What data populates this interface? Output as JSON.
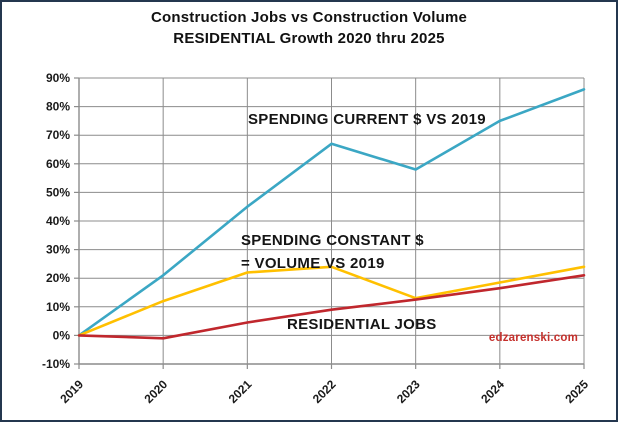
{
  "title": {
    "line1": "Construction Jobs vs Construction Volume",
    "line2": "RESIDENTIAL Growth 2020 thru 2025"
  },
  "chart_data": {
    "type": "line",
    "title": "Construction Jobs vs Construction Volume",
    "subtitle": "RESIDENTIAL Growth 2020 thru 2025",
    "categories": [
      "2019",
      "2020",
      "2021",
      "2022",
      "2023",
      "2024",
      "2025"
    ],
    "series": [
      {
        "name": "SPENDING CURRENT $ VS 2019",
        "color": "#3ba7c4",
        "values": [
          0,
          21,
          45,
          67,
          58,
          75,
          86
        ]
      },
      {
        "name": "SPENDING CONSTANT $ = VOLUME VS 2019",
        "color": "#ffc000",
        "values": [
          0,
          12,
          22,
          24,
          13,
          18.5,
          24
        ]
      },
      {
        "name": "RESIDENTIAL JOBS",
        "color": "#c0272d",
        "values": [
          0,
          -1,
          4.5,
          9,
          12.5,
          16.5,
          21
        ]
      }
    ],
    "xlabel": "",
    "ylabel": "",
    "ylim": [
      -10,
      90
    ],
    "ytick_values": [
      90,
      80,
      70,
      60,
      50,
      40,
      30,
      20,
      10,
      0,
      -10
    ],
    "ytick_labels": [
      "90%",
      "80%",
      "70%",
      "60%",
      "50%",
      "40%",
      "30%",
      "20%",
      "10%",
      "0%",
      "-10%"
    ],
    "grid": true,
    "legend_position": "none",
    "grid_color": "#8c8c8c",
    "axis_text_color": "#1a1a1a"
  },
  "annotations": {
    "spending_current": "SPENDING CURRENT $ VS 2019",
    "spending_constant_line1": "SPENDING CONSTANT $",
    "spending_constant_line2": "= VOLUME VS 2019",
    "residential_jobs": "RESIDENTIAL JOBS"
  },
  "watermark": "edzarenski.com"
}
